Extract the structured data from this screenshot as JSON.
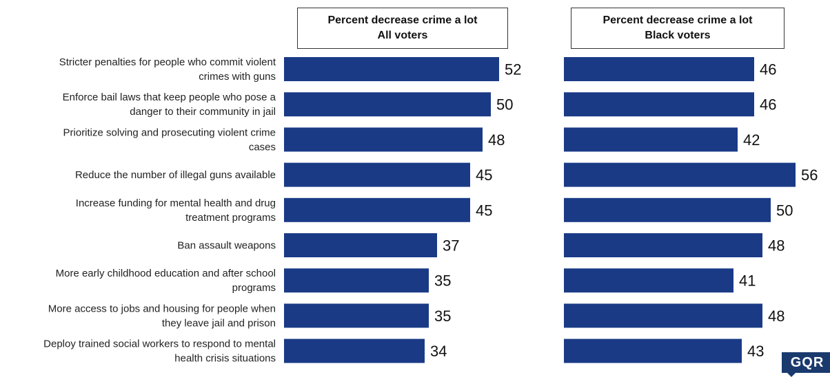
{
  "chart_data": [
    {
      "type": "bar",
      "orientation": "horizontal",
      "title": [
        "Percent decrease crime a lot",
        "All voters"
      ],
      "categories": [
        [
          "Stricter penalties for people who commit violent",
          "crimes with guns"
        ],
        [
          "Enforce bail laws that keep people who pose a",
          "danger to their community in jail"
        ],
        [
          "Prioritize solving and prosecuting violent crime",
          "cases"
        ],
        [
          "Reduce the number of illegal guns available"
        ],
        [
          "Increase funding for mental health and drug",
          "treatment programs"
        ],
        [
          "Ban assault weapons"
        ],
        [
          "More early childhood education and after school",
          "programs"
        ],
        [
          "More access to jobs and housing for people when",
          "they leave jail and prison"
        ],
        [
          "Deploy trained social workers to respond to mental",
          "health crisis situations"
        ]
      ],
      "values": [
        52,
        50,
        48,
        45,
        45,
        37,
        35,
        35,
        34
      ],
      "color": "#1a3a86"
    },
    {
      "type": "bar",
      "orientation": "horizontal",
      "title": [
        "Percent decrease crime a lot",
        "Black voters"
      ],
      "values": [
        46,
        46,
        42,
        56,
        50,
        48,
        41,
        48,
        43
      ],
      "color": "#1a3a86"
    }
  ],
  "logo_text": "GQR"
}
